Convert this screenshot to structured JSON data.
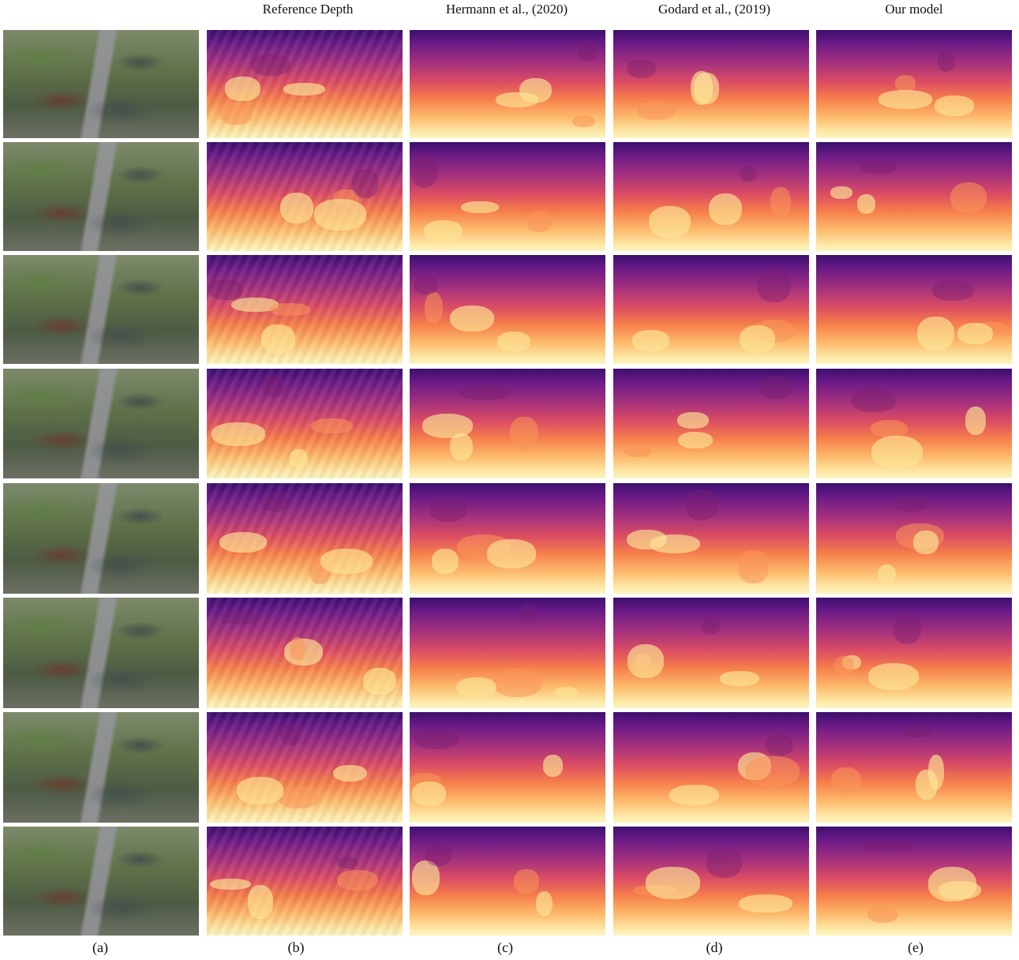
{
  "figure": {
    "column_headers": {
      "reference": "Reference Depth",
      "hermann": "Hermann  et al., (2020)",
      "godard": "Godard  et al., (2019)",
      "ours": "Our model"
    },
    "subfigure_labels": {
      "a": "(a)",
      "b": "(b)",
      "c": "(c)",
      "d": "(d)",
      "e": "(e)"
    },
    "row_count": 8
  }
}
